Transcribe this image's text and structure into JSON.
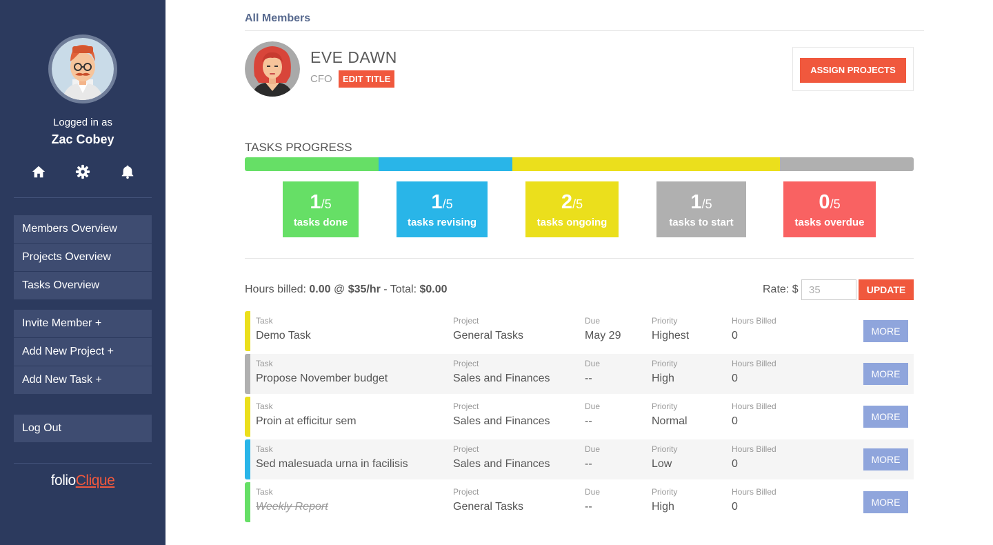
{
  "sidebar": {
    "logged_in_label": "Logged in as",
    "user_name": "Zac Cobey",
    "nav_group_1": [
      "Members Overview",
      "Projects Overview",
      "Tasks Overview"
    ],
    "nav_group_2": [
      "Invite Member +",
      "Add New Project +",
      "Add New Task +"
    ],
    "logout_label": "Log Out",
    "brand_prefix": "folio",
    "brand_accent": "Clique",
    "icons": [
      "home-icon",
      "gear-icon",
      "bell-icon"
    ]
  },
  "breadcrumb": "All Members",
  "member": {
    "name": "EVE DAWN",
    "title": "CFO",
    "edit_title_label": "EDIT TITLE",
    "assign_label": "ASSIGN PROJECTS"
  },
  "progress": {
    "heading": "TASKS PROGRESS",
    "segments": [
      {
        "status": "done",
        "count": 1,
        "color": "#66df66"
      },
      {
        "status": "revising",
        "count": 1,
        "color": "#29b5e8"
      },
      {
        "status": "ongoing",
        "count": 2,
        "color": "#ebdf1c"
      },
      {
        "status": "to start",
        "count": 1,
        "color": "#b0b0b0"
      }
    ],
    "stats": [
      {
        "num": "1",
        "den": "/5",
        "label": "tasks done",
        "color": "#66df66"
      },
      {
        "num": "1",
        "den": "/5",
        "label": "tasks revising",
        "color": "#29b5e8"
      },
      {
        "num": "2",
        "den": "/5",
        "label": "tasks ongoing",
        "color": "#ebdf1c"
      },
      {
        "num": "1",
        "den": "/5",
        "label": "tasks to start",
        "color": "#b0b0b0"
      },
      {
        "num": "0",
        "den": "/5",
        "label": "tasks overdue",
        "color": "#f96262"
      }
    ]
  },
  "billing": {
    "hours_label": "Hours billed:",
    "hours": "0.00",
    "at": "@",
    "rate_text": "$35/hr",
    "total_label": "- Total:",
    "total": "$0.00",
    "rate_field_label": "Rate: $",
    "rate_placeholder": "35",
    "update_label": "UPDATE"
  },
  "columns": {
    "task": "Task",
    "project": "Project",
    "due": "Due",
    "priority": "Priority",
    "hours": "Hours Billed"
  },
  "more_label": "MORE",
  "tasks": [
    {
      "name": "Demo Task",
      "project": "General Tasks",
      "due": "May 29",
      "priority": "Highest",
      "hours": "0",
      "status_color": "#ebdf1c",
      "completed": false
    },
    {
      "name": "Propose November budget",
      "project": "Sales and Finances",
      "due": "--",
      "priority": "High",
      "hours": "0",
      "status_color": "#b0b0b0",
      "completed": false
    },
    {
      "name": "Proin at efficitur sem",
      "project": "Sales and Finances",
      "due": "--",
      "priority": "Normal",
      "hours": "0",
      "status_color": "#ebdf1c",
      "completed": false
    },
    {
      "name": "Sed malesuada urna in facilisis",
      "project": "Sales and Finances",
      "due": "--",
      "priority": "Low",
      "hours": "0",
      "status_color": "#29b5e8",
      "completed": false
    },
    {
      "name": "Weekly Report",
      "project": "General Tasks",
      "due": "--",
      "priority": "High",
      "hours": "0",
      "status_color": "#66df66",
      "completed": true
    }
  ]
}
